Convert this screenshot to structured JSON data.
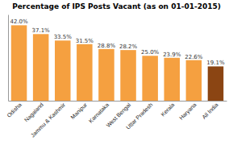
{
  "chart_data": {
    "type": "bar",
    "title": "Percentage of IPS Posts Vacant  (as on 01-01-2015)",
    "categories": [
      "Odisha",
      "Nagaland",
      "Jammu & Kashmir",
      "Manipur",
      "Karnataka",
      "West Bengal",
      "Uttar Pradesh",
      "Kerala",
      "Haryana",
      "All India"
    ],
    "values": [
      42.0,
      37.1,
      33.5,
      31.5,
      28.8,
      28.2,
      25.0,
      23.9,
      22.6,
      19.1
    ],
    "value_labels": [
      "42.0%",
      "37.1%",
      "33.5%",
      "31.5%",
      "28.8%",
      "28.2%",
      "25.0%",
      "23.9%",
      "22.6%",
      "19.1%"
    ],
    "colors": [
      "#F5A040",
      "#F5A040",
      "#F5A040",
      "#F5A040",
      "#F5A040",
      "#F5A040",
      "#F5A040",
      "#F5A040",
      "#F5A040",
      "#8B4513"
    ],
    "ylim": [
      0,
      48
    ],
    "data_labels": true,
    "tick_labels": "x",
    "grid": false
  }
}
